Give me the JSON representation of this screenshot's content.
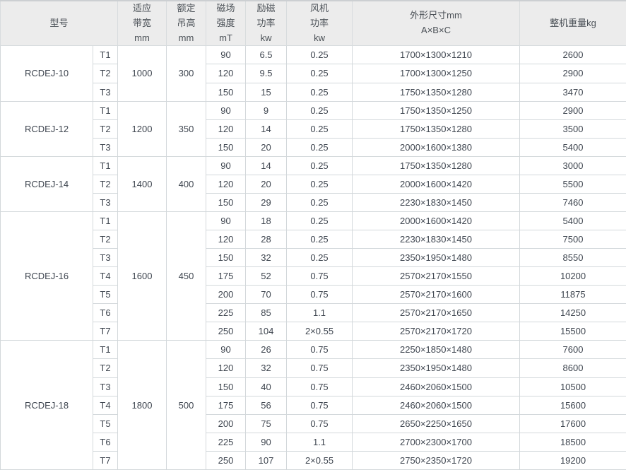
{
  "table": {
    "headers": [
      {
        "key": "model",
        "label": "型号",
        "colspan": 2
      },
      {
        "key": "bandwidth",
        "label": "适应\n带宽\nmm",
        "colspan": 1
      },
      {
        "key": "hang_height",
        "label": "额定\n吊高\nmm",
        "colspan": 1
      },
      {
        "key": "field_strength",
        "label": "磁场\n强度\nmT",
        "colspan": 1
      },
      {
        "key": "excitation_power",
        "label": "励磁\n功率\nkw",
        "colspan": 1
      },
      {
        "key": "fan_power",
        "label": "风机\n功率\nkw",
        "colspan": 1
      },
      {
        "key": "dimensions",
        "label": "外形尺寸mm\nA×B×C",
        "colspan": 1
      },
      {
        "key": "weight",
        "label": "整机重量kg",
        "colspan": 1
      }
    ],
    "groups": [
      {
        "model": "RCDEJ-10",
        "bandwidth": "1000",
        "hang_height": "300",
        "rows": [
          {
            "t": "T1",
            "field_strength": "90",
            "excitation_power": "6.5",
            "fan_power": "0.25",
            "dimensions": "1700×1300×1210",
            "weight": "2600"
          },
          {
            "t": "T2",
            "field_strength": "120",
            "excitation_power": "9.5",
            "fan_power": "0.25",
            "dimensions": "1700×1300×1250",
            "weight": "2900"
          },
          {
            "t": "T3",
            "field_strength": "150",
            "excitation_power": "15",
            "fan_power": "0.25",
            "dimensions": "1750×1350×1280",
            "weight": "3470"
          }
        ]
      },
      {
        "model": "RCDEJ-12",
        "bandwidth": "1200",
        "hang_height": "350",
        "rows": [
          {
            "t": "T1",
            "field_strength": "90",
            "excitation_power": "9",
            "fan_power": "0.25",
            "dimensions": "1750×1350×1250",
            "weight": "2900"
          },
          {
            "t": "T2",
            "field_strength": "120",
            "excitation_power": "14",
            "fan_power": "0.25",
            "dimensions": "1750×1350×1280",
            "weight": "3500"
          },
          {
            "t": "T3",
            "field_strength": "150",
            "excitation_power": "20",
            "fan_power": "0.25",
            "dimensions": "2000×1600×1380",
            "weight": "5400"
          }
        ]
      },
      {
        "model": "RCDEJ-14",
        "bandwidth": "1400",
        "hang_height": "400",
        "rows": [
          {
            "t": "T1",
            "field_strength": "90",
            "excitation_power": "14",
            "fan_power": "0.25",
            "dimensions": "1750×1350×1280",
            "weight": "3000"
          },
          {
            "t": "T2",
            "field_strength": "120",
            "excitation_power": "20",
            "fan_power": "0.25",
            "dimensions": "2000×1600×1420",
            "weight": "5500"
          },
          {
            "t": "T3",
            "field_strength": "150",
            "excitation_power": "29",
            "fan_power": "0.25",
            "dimensions": "2230×1830×1450",
            "weight": "7460"
          }
        ]
      },
      {
        "model": "RCDEJ-16",
        "bandwidth": "1600",
        "hang_height": "450",
        "rows": [
          {
            "t": "T1",
            "field_strength": "90",
            "excitation_power": "18",
            "fan_power": "0.25",
            "dimensions": "2000×1600×1420",
            "weight": "5400"
          },
          {
            "t": "T2",
            "field_strength": "120",
            "excitation_power": "28",
            "fan_power": "0.25",
            "dimensions": "2230×1830×1450",
            "weight": "7500"
          },
          {
            "t": "T3",
            "field_strength": "150",
            "excitation_power": "32",
            "fan_power": "0.25",
            "dimensions": "2350×1950×1480",
            "weight": "8550"
          },
          {
            "t": "T4",
            "field_strength": "175",
            "excitation_power": "52",
            "fan_power": "0.75",
            "dimensions": "2570×2170×1550",
            "weight": "10200"
          },
          {
            "t": "T5",
            "field_strength": "200",
            "excitation_power": "70",
            "fan_power": "0.75",
            "dimensions": "2570×2170×1600",
            "weight": "11875"
          },
          {
            "t": "T6",
            "field_strength": "225",
            "excitation_power": "85",
            "fan_power": "1.1",
            "dimensions": "2570×2170×1650",
            "weight": "14250"
          },
          {
            "t": "T7",
            "field_strength": "250",
            "excitation_power": "104",
            "fan_power": "2×0.55",
            "dimensions": "2570×2170×1720",
            "weight": "15500"
          }
        ]
      },
      {
        "model": "RCDEJ-18",
        "bandwidth": "1800",
        "hang_height": "500",
        "rows": [
          {
            "t": "T1",
            "field_strength": "90",
            "excitation_power": "26",
            "fan_power": "0.75",
            "dimensions": "2250×1850×1480",
            "weight": "7600"
          },
          {
            "t": "T2",
            "field_strength": "120",
            "excitation_power": "32",
            "fan_power": "0.75",
            "dimensions": "2350×1950×1480",
            "weight": "8600"
          },
          {
            "t": "T3",
            "field_strength": "150",
            "excitation_power": "40",
            "fan_power": "0.75",
            "dimensions": "2460×2060×1500",
            "weight": "10500"
          },
          {
            "t": "T4",
            "field_strength": "175",
            "excitation_power": "56",
            "fan_power": "0.75",
            "dimensions": "2460×2060×1500",
            "weight": "15600"
          },
          {
            "t": "T5",
            "field_strength": "200",
            "excitation_power": "75",
            "fan_power": "0.75",
            "dimensions": "2650×2250×1650",
            "weight": "17600"
          },
          {
            "t": "T6",
            "field_strength": "225",
            "excitation_power": "90",
            "fan_power": "1.1",
            "dimensions": "2700×2300×1700",
            "weight": "18500"
          },
          {
            "t": "T7",
            "field_strength": "250",
            "excitation_power": "107",
            "fan_power": "2×0.55",
            "dimensions": "2750×2350×1720",
            "weight": "19200"
          }
        ]
      }
    ],
    "colors": {
      "header_bg": "#ececec",
      "border": "#d3d8db",
      "text": "#3f4650"
    }
  }
}
